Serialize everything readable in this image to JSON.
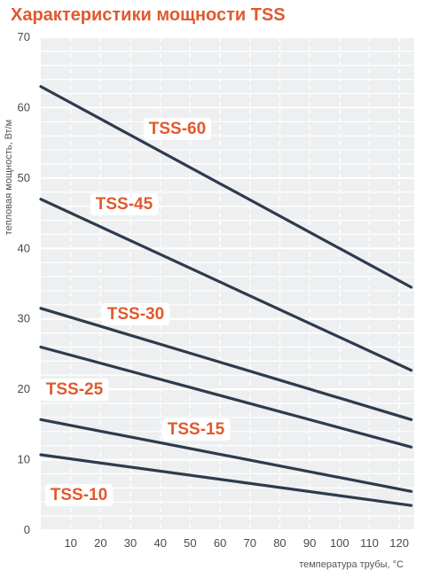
{
  "chart_data": {
    "type": "line",
    "title": "Характеристики мощности TSS",
    "xlabel": "температура трубы, °C",
    "ylabel": "тепловая мощность, Вт/м",
    "xlim": [
      0,
      125
    ],
    "ylim": [
      0,
      70
    ],
    "x_ticks": [
      10,
      20,
      30,
      40,
      50,
      60,
      70,
      80,
      90,
      100,
      110,
      120
    ],
    "y_ticks": [
      0,
      10,
      20,
      30,
      40,
      50,
      60,
      70
    ],
    "grid": true,
    "legend": "none",
    "line_color": "#2e3b4e",
    "label_color": "#e2582c",
    "series": [
      {
        "name": "TSS-60",
        "x": [
          0,
          124
        ],
        "y": [
          63,
          34.5
        ]
      },
      {
        "name": "TSS-45",
        "x": [
          0,
          124
        ],
        "y": [
          47,
          22.7
        ]
      },
      {
        "name": "TSS-30",
        "x": [
          0,
          124
        ],
        "y": [
          31.5,
          15.7
        ]
      },
      {
        "name": "TSS-25",
        "x": [
          0,
          124
        ],
        "y": [
          26,
          11.8
        ]
      },
      {
        "name": "TSS-15",
        "x": [
          0,
          124
        ],
        "y": [
          15.7,
          5.5
        ]
      },
      {
        "name": "TSS-10",
        "x": [
          0,
          124
        ],
        "y": [
          10.7,
          3.5
        ]
      }
    ]
  }
}
